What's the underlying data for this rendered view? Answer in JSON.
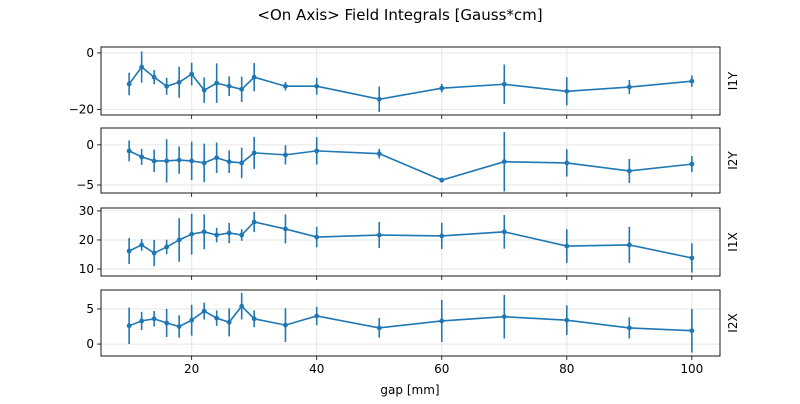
{
  "chart_data": {
    "type": "line",
    "title": "<On Axis> Field Integrals [Gauss*cm]",
    "xlabel": "gap [mm]",
    "xlim": [
      5.5,
      104.5
    ],
    "xticks": [
      20,
      40,
      60,
      80,
      100
    ],
    "grid": true,
    "x": [
      10,
      12,
      14,
      16,
      18,
      20,
      22,
      24,
      26,
      28,
      30,
      35,
      40,
      50,
      60,
      70,
      80,
      90,
      100
    ],
    "color": "#1f77b4",
    "panels": [
      {
        "ylabel": "I1Y",
        "ylim": [
          -22,
          2.1
        ],
        "yticks": [
          0,
          -20
        ],
        "values": [
          -11,
          -5,
          -8.6,
          -11.8,
          -10.4,
          -7.5,
          -13.2,
          -10.7,
          -11.8,
          -12.9,
          -8.6,
          -11.8,
          -11.8,
          -16.4,
          -12.5,
          -11.1,
          -13.6,
          -12.1,
          -10
        ],
        "errors": [
          4,
          5.5,
          2.5,
          3,
          5.5,
          4,
          4.5,
          7,
          3.5,
          4.5,
          5,
          1.5,
          3,
          4.5,
          1.5,
          7,
          5,
          2.5,
          2
        ]
      },
      {
        "ylabel": "I2Y",
        "ylim": [
          -6,
          2.1
        ],
        "yticks": [
          0,
          -5
        ],
        "values": [
          -0.75,
          -1.5,
          -2,
          -2,
          -1.9,
          -2,
          -2.25,
          -1.6,
          -2.1,
          -2.25,
          -1,
          -1.25,
          -0.75,
          -1.1,
          -4.4,
          -2.1,
          -2.25,
          -3.25,
          -2.4
        ],
        "errors": [
          1.3,
          1,
          1.4,
          2.7,
          1.7,
          2.4,
          2.4,
          1.9,
          1.4,
          1.9,
          2,
          1.2,
          1.7,
          0.6,
          0.3,
          3.7,
          1.7,
          1.5,
          1
        ]
      },
      {
        "ylabel": "I1X",
        "ylim": [
          7.6,
          31
        ],
        "yticks": [
          10,
          20,
          30
        ],
        "values": [
          16.2,
          18.3,
          15.5,
          17.6,
          20,
          22,
          22.8,
          21.7,
          22.4,
          21.7,
          26.2,
          23.8,
          21,
          21.7,
          21.4,
          22.8,
          17.9,
          18.3,
          13.8
        ],
        "errors": [
          4.5,
          2,
          4.5,
          2.5,
          7.5,
          7,
          6,
          2.5,
          3.5,
          2,
          3.5,
          5,
          3.5,
          4.5,
          4.5,
          5.8,
          5.8,
          6.2,
          5
        ]
      },
      {
        "ylabel": "I2X",
        "ylim": [
          -1.7,
          7.7
        ],
        "yticks": [
          0,
          5
        ],
        "values": [
          2.6,
          3.3,
          3.6,
          3,
          2.5,
          3.4,
          4.7,
          3.7,
          3.1,
          5.4,
          3.6,
          2.7,
          4,
          2.3,
          3.3,
          3.9,
          3.4,
          2.3,
          1.9
        ],
        "errors": [
          2.6,
          1.3,
          1.1,
          2,
          1.6,
          2.2,
          1.2,
          1.1,
          2,
          1.9,
          1.2,
          2.4,
          1.3,
          1.4,
          3,
          3.1,
          2.1,
          1.5,
          3.1
        ]
      }
    ]
  }
}
